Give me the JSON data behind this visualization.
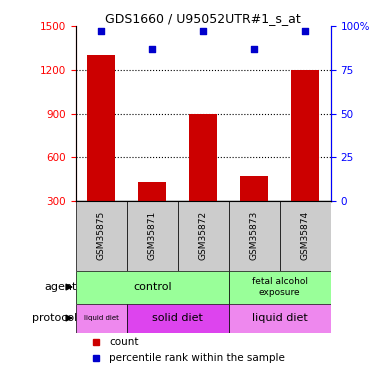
{
  "title": "GDS1660 / U95052UTR#1_s_at",
  "samples": [
    "GSM35875",
    "GSM35871",
    "GSM35872",
    "GSM35873",
    "GSM35874"
  ],
  "counts": [
    1300,
    430,
    900,
    470,
    1200
  ],
  "percentiles": [
    97,
    87,
    97,
    87,
    97
  ],
  "ylim_left": [
    300,
    1500
  ],
  "ylim_right": [
    0,
    100
  ],
  "yticks_left": [
    300,
    600,
    900,
    1200,
    1500
  ],
  "yticks_right": [
    0,
    25,
    50,
    75,
    100
  ],
  "bar_color": "#cc0000",
  "scatter_color": "#0000cc",
  "sample_bg_color": "#cccccc",
  "agent_control_color": "#99ff99",
  "agent_fetal_color": "#99ff99",
  "protocol_liquid_color": "#ee88ee",
  "protocol_solid_color": "#dd44ee",
  "legend_red_label": "count",
  "legend_blue_label": "percentile rank within the sample",
  "agent_label": "agent",
  "protocol_label": "protocol",
  "gridline_ticks": [
    600,
    900,
    1200
  ],
  "bar_width": 0.55
}
